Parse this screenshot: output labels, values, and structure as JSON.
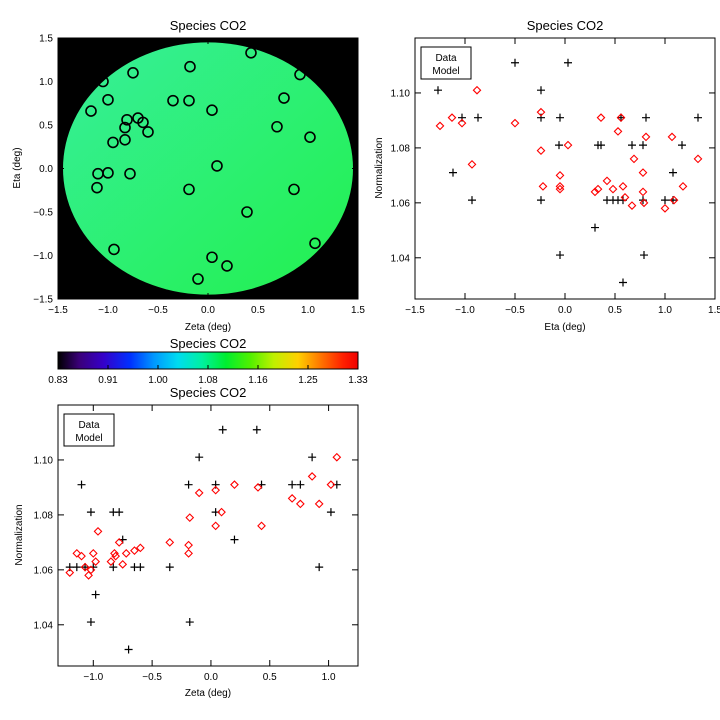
{
  "chart_data": [
    {
      "type": "map",
      "title": "Species CO2",
      "xlabel": "Zeta (deg)",
      "ylabel": "Eta (deg)",
      "xlim": [
        -1.5,
        1.5
      ],
      "ylim": [
        -1.5,
        1.5
      ],
      "xticks": [
        "−1.5",
        "−1.0",
        "−0.5",
        "0.0",
        "0.5",
        "1.0",
        "1.5"
      ],
      "yticks": [
        "−1.5",
        "−1.0",
        "−0.5",
        "0.0",
        "0.5",
        "1.0",
        "1.5"
      ],
      "field_radius_deg": 1.45,
      "colors": {
        "background": "#000000",
        "field_low": "#37ef9a",
        "field_high": "#22f04d"
      },
      "points": [
        {
          "x": 0.43,
          "y": 1.33
        },
        {
          "x": -0.18,
          "y": 1.17
        },
        {
          "x": -0.75,
          "y": 1.1
        },
        {
          "x": 0.92,
          "y": 1.08
        },
        {
          "x": -1.05,
          "y": 1.0
        },
        {
          "x": -1.0,
          "y": 0.79
        },
        {
          "x": -0.35,
          "y": 0.78
        },
        {
          "x": -0.19,
          "y": 0.78
        },
        {
          "x": 0.76,
          "y": 0.81
        },
        {
          "x": -1.17,
          "y": 0.66
        },
        {
          "x": 0.04,
          "y": 0.67
        },
        {
          "x": -0.7,
          "y": 0.58
        },
        {
          "x": -0.81,
          "y": 0.56
        },
        {
          "x": -0.65,
          "y": 0.53
        },
        {
          "x": -0.83,
          "y": 0.47
        },
        {
          "x": 0.69,
          "y": 0.48
        },
        {
          "x": -0.6,
          "y": 0.42
        },
        {
          "x": 1.02,
          "y": 0.36
        },
        {
          "x": -0.83,
          "y": 0.33
        },
        {
          "x": -0.95,
          "y": 0.3
        },
        {
          "x": 0.09,
          "y": 0.03
        },
        {
          "x": -1.1,
          "y": -0.06
        },
        {
          "x": -0.78,
          "y": -0.06
        },
        {
          "x": -1.0,
          "y": -0.05
        },
        {
          "x": -1.11,
          "y": -0.22
        },
        {
          "x": -0.19,
          "y": -0.24
        },
        {
          "x": 0.86,
          "y": -0.24
        },
        {
          "x": 0.39,
          "y": -0.5
        },
        {
          "x": 1.07,
          "y": -0.86
        },
        {
          "x": -0.94,
          "y": -0.93
        },
        {
          "x": 0.04,
          "y": -1.02
        },
        {
          "x": 0.19,
          "y": -1.12
        },
        {
          "x": -0.1,
          "y": -1.27
        }
      ]
    },
    {
      "type": "colorbar",
      "title": "Species CO2",
      "ticks": [
        "0.83",
        "0.91",
        "1.00",
        "1.08",
        "1.16",
        "1.25",
        "1.33"
      ]
    },
    {
      "type": "scatter",
      "title": "Species CO2",
      "xlabel": "Eta (deg)",
      "ylabel": "Normalization",
      "xlim": [
        -1.5,
        1.5
      ],
      "ylim": [
        1.025,
        1.12
      ],
      "xticks": [
        "−1.5",
        "−1.0",
        "−0.5",
        "0.0",
        "0.5",
        "1.0",
        "1.5"
      ],
      "yticks": [
        "1.04",
        "1.06",
        "1.08",
        "1.10"
      ],
      "legend": [
        "Data",
        "Model"
      ],
      "legend_position": "top-left",
      "colors": {
        "data": "#000000",
        "model": "#ff0000"
      },
      "data_points": [
        {
          "x": -1.27,
          "y": 1.101
        },
        {
          "x": -1.12,
          "y": 1.071
        },
        {
          "x": -1.03,
          "y": 1.091
        },
        {
          "x": -0.93,
          "y": 1.061
        },
        {
          "x": -0.87,
          "y": 1.091
        },
        {
          "x": -0.5,
          "y": 1.111
        },
        {
          "x": -0.24,
          "y": 1.101
        },
        {
          "x": -0.24,
          "y": 1.091
        },
        {
          "x": -0.24,
          "y": 1.061
        },
        {
          "x": -0.06,
          "y": 1.081
        },
        {
          "x": -0.05,
          "y": 1.091
        },
        {
          "x": -0.05,
          "y": 1.041
        },
        {
          "x": 0.03,
          "y": 1.111
        },
        {
          "x": 0.3,
          "y": 1.051
        },
        {
          "x": 0.33,
          "y": 1.081
        },
        {
          "x": 0.36,
          "y": 1.081
        },
        {
          "x": 0.42,
          "y": 1.061
        },
        {
          "x": 0.48,
          "y": 1.061
        },
        {
          "x": 0.53,
          "y": 1.061
        },
        {
          "x": 0.56,
          "y": 1.091
        },
        {
          "x": 0.58,
          "y": 1.061
        },
        {
          "x": 0.58,
          "y": 1.031
        },
        {
          "x": 0.67,
          "y": 1.081
        },
        {
          "x": 0.78,
          "y": 1.081
        },
        {
          "x": 0.78,
          "y": 1.061
        },
        {
          "x": 0.79,
          "y": 1.041
        },
        {
          "x": 0.81,
          "y": 1.091
        },
        {
          "x": 1.0,
          "y": 1.061
        },
        {
          "x": 1.08,
          "y": 1.061
        },
        {
          "x": 1.08,
          "y": 1.071
        },
        {
          "x": 1.17,
          "y": 1.081
        },
        {
          "x": 1.33,
          "y": 1.091
        }
      ],
      "model_points": [
        {
          "x": -1.25,
          "y": 1.088
        },
        {
          "x": -1.13,
          "y": 1.091
        },
        {
          "x": -1.03,
          "y": 1.089
        },
        {
          "x": -0.93,
          "y": 1.074
        },
        {
          "x": -0.88,
          "y": 1.101
        },
        {
          "x": -0.5,
          "y": 1.089
        },
        {
          "x": -0.24,
          "y": 1.093
        },
        {
          "x": -0.24,
          "y": 1.079
        },
        {
          "x": -0.22,
          "y": 1.066
        },
        {
          "x": -0.05,
          "y": 1.07
        },
        {
          "x": -0.05,
          "y": 1.066
        },
        {
          "x": -0.05,
          "y": 1.065
        },
        {
          "x": 0.03,
          "y": 1.081
        },
        {
          "x": 0.3,
          "y": 1.064
        },
        {
          "x": 0.33,
          "y": 1.065
        },
        {
          "x": 0.36,
          "y": 1.091
        },
        {
          "x": 0.42,
          "y": 1.068
        },
        {
          "x": 0.48,
          "y": 1.065
        },
        {
          "x": 0.53,
          "y": 1.086
        },
        {
          "x": 0.56,
          "y": 1.091
        },
        {
          "x": 0.58,
          "y": 1.066
        },
        {
          "x": 0.6,
          "y": 1.062
        },
        {
          "x": 0.67,
          "y": 1.059
        },
        {
          "x": 0.69,
          "y": 1.076
        },
        {
          "x": 0.78,
          "y": 1.071
        },
        {
          "x": 0.79,
          "y": 1.06
        },
        {
          "x": 0.81,
          "y": 1.084
        },
        {
          "x": 0.78,
          "y": 1.064
        },
        {
          "x": 1.0,
          "y": 1.058
        },
        {
          "x": 1.07,
          "y": 1.084
        },
        {
          "x": 1.09,
          "y": 1.061
        },
        {
          "x": 1.18,
          "y": 1.066
        },
        {
          "x": 1.33,
          "y": 1.076
        }
      ]
    },
    {
      "type": "scatter",
      "title": "Species CO2",
      "xlabel": "Zeta (deg)",
      "ylabel": "Normalization",
      "xlim": [
        -1.3,
        1.25
      ],
      "ylim": [
        1.025,
        1.12
      ],
      "xticks": [
        "−1.0",
        "−0.5",
        "0.0",
        "0.5",
        "1.0"
      ],
      "yticks": [
        "1.04",
        "1.06",
        "1.08",
        "1.10"
      ],
      "legend": [
        "Data",
        "Model"
      ],
      "legend_position": "top-left",
      "colors": {
        "data": "#000000",
        "model": "#ff0000"
      },
      "data_points": [
        {
          "x": -1.2,
          "y": 1.061
        },
        {
          "x": -1.14,
          "y": 1.061
        },
        {
          "x": -1.1,
          "y": 1.091
        },
        {
          "x": -1.07,
          "y": 1.061
        },
        {
          "x": -1.02,
          "y": 1.081
        },
        {
          "x": -1.02,
          "y": 1.041
        },
        {
          "x": -1.0,
          "y": 1.061
        },
        {
          "x": -0.98,
          "y": 1.051
        },
        {
          "x": -0.83,
          "y": 1.081
        },
        {
          "x": -0.83,
          "y": 1.061
        },
        {
          "x": -0.78,
          "y": 1.081
        },
        {
          "x": -0.75,
          "y": 1.071
        },
        {
          "x": -0.7,
          "y": 1.031
        },
        {
          "x": -0.65,
          "y": 1.061
        },
        {
          "x": -0.6,
          "y": 1.061
        },
        {
          "x": -0.35,
          "y": 1.061
        },
        {
          "x": -0.19,
          "y": 1.091
        },
        {
          "x": -0.18,
          "y": 1.041
        },
        {
          "x": -0.1,
          "y": 1.101
        },
        {
          "x": 0.04,
          "y": 1.091
        },
        {
          "x": 0.04,
          "y": 1.081
        },
        {
          "x": 0.1,
          "y": 1.111
        },
        {
          "x": 0.2,
          "y": 1.071
        },
        {
          "x": 0.39,
          "y": 1.111
        },
        {
          "x": 0.43,
          "y": 1.091
        },
        {
          "x": 0.69,
          "y": 1.091
        },
        {
          "x": 0.76,
          "y": 1.091
        },
        {
          "x": 0.86,
          "y": 1.101
        },
        {
          "x": 0.92,
          "y": 1.061
        },
        {
          "x": 1.02,
          "y": 1.081
        },
        {
          "x": 1.07,
          "y": 1.091
        }
      ],
      "model_points": [
        {
          "x": -1.2,
          "y": 1.059
        },
        {
          "x": -1.14,
          "y": 1.066
        },
        {
          "x": -1.1,
          "y": 1.065
        },
        {
          "x": -1.07,
          "y": 1.061
        },
        {
          "x": -1.04,
          "y": 1.058
        },
        {
          "x": -1.02,
          "y": 1.06
        },
        {
          "x": -1.0,
          "y": 1.066
        },
        {
          "x": -0.98,
          "y": 1.063
        },
        {
          "x": -0.96,
          "y": 1.074
        },
        {
          "x": -0.85,
          "y": 1.063
        },
        {
          "x": -0.82,
          "y": 1.066
        },
        {
          "x": -0.81,
          "y": 1.065
        },
        {
          "x": -0.78,
          "y": 1.07
        },
        {
          "x": -0.75,
          "y": 1.062
        },
        {
          "x": -0.72,
          "y": 1.066
        },
        {
          "x": -0.65,
          "y": 1.067
        },
        {
          "x": -0.6,
          "y": 1.068
        },
        {
          "x": -0.35,
          "y": 1.07
        },
        {
          "x": -0.19,
          "y": 1.069
        },
        {
          "x": -0.19,
          "y": 1.066
        },
        {
          "x": -0.18,
          "y": 1.079
        },
        {
          "x": -0.1,
          "y": 1.088
        },
        {
          "x": 0.04,
          "y": 1.089
        },
        {
          "x": 0.04,
          "y": 1.076
        },
        {
          "x": 0.09,
          "y": 1.081
        },
        {
          "x": 0.2,
          "y": 1.091
        },
        {
          "x": 0.4,
          "y": 1.09
        },
        {
          "x": 0.43,
          "y": 1.076
        },
        {
          "x": 0.69,
          "y": 1.086
        },
        {
          "x": 0.76,
          "y": 1.084
        },
        {
          "x": 0.86,
          "y": 1.094
        },
        {
          "x": 0.92,
          "y": 1.084
        },
        {
          "x": 1.02,
          "y": 1.091
        },
        {
          "x": 1.07,
          "y": 1.101
        }
      ]
    }
  ]
}
